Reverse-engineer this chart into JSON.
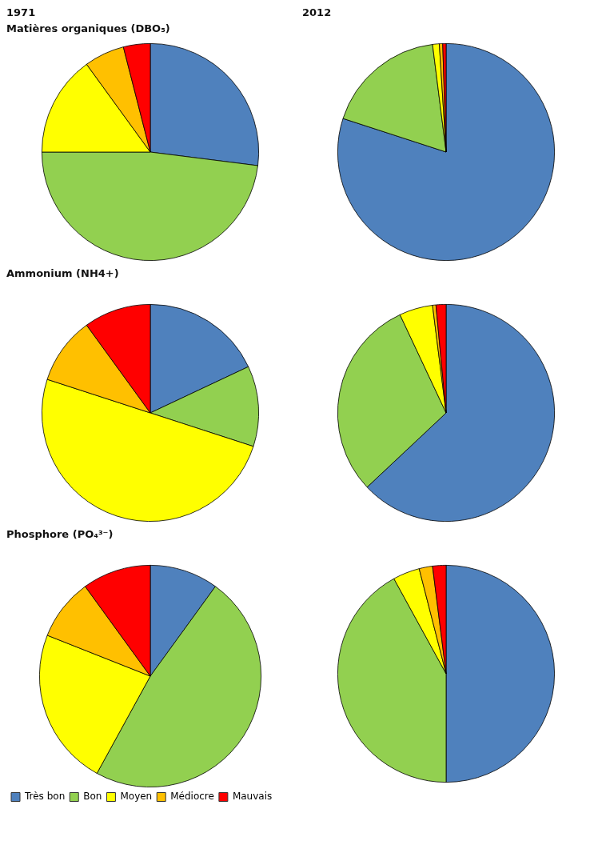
{
  "chart_data": [
    {
      "type": "pie",
      "title": "1971",
      "subtitle": "Matières organiques (DBO₅)",
      "categories": [
        null,
        null,
        null,
        null,
        null
      ],
      "values": [
        27,
        48,
        15,
        6,
        4
      ],
      "colors": [
        "#4f81bd",
        "#92d050",
        "#ffff00",
        "#ffc000",
        "#ff0000"
      ]
    },
    {
      "type": "pie",
      "title": "2012",
      "categories": [
        null,
        null,
        null,
        null,
        null
      ],
      "values": [
        80,
        18,
        1,
        0.5,
        0.5
      ],
      "colors": [
        "#4f81bd",
        "#92d050",
        "#ffff00",
        "#ffc000",
        "#ff0000"
      ]
    },
    {
      "type": "pie",
      "title": "Ammonium (NH4+)",
      "categories": [
        null,
        null,
        null,
        null,
        null
      ],
      "values": [
        18,
        12,
        50,
        10,
        10
      ],
      "colors": [
        "#4f81bd",
        "#92d050",
        "#ffff00",
        "#ffc000",
        "#ff0000"
      ]
    },
    {
      "type": "pie",
      "categories": [
        null,
        null,
        null,
        null,
        null
      ],
      "values": [
        63,
        30,
        5,
        0.5,
        1.5
      ],
      "colors": [
        "#4f81bd",
        "#92d050",
        "#ffff00",
        "#ffc000",
        "#ff0000"
      ]
    },
    {
      "type": "pie",
      "title": "Phosphore (PO₄³⁻)",
      "categories": [
        "Très bon",
        "Bon",
        "Moyen",
        "Médiocre",
        "Mauvais"
      ],
      "values": [
        10,
        48,
        23,
        9,
        10
      ],
      "colors": [
        "#4f81bd",
        "#92d050",
        "#ffff00",
        "#ffc000",
        "#ff0000"
      ],
      "legend": "bottom"
    },
    {
      "type": "pie",
      "categories": [
        null,
        null,
        null,
        null,
        null
      ],
      "values": [
        50,
        42,
        4,
        2,
        2
      ],
      "colors": [
        "#4f81bd",
        "#92d050",
        "#ffff00",
        "#ffc000",
        "#ff0000"
      ]
    }
  ]
}
